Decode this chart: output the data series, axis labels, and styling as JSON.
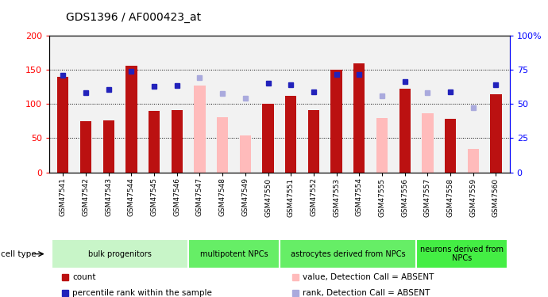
{
  "title": "GDS1396 / AF000423_at",
  "samples": [
    "GSM47541",
    "GSM47542",
    "GSM47543",
    "GSM47544",
    "GSM47545",
    "GSM47546",
    "GSM47547",
    "GSM47548",
    "GSM47549",
    "GSM47550",
    "GSM47551",
    "GSM47552",
    "GSM47553",
    "GSM47554",
    "GSM47555",
    "GSM47556",
    "GSM47557",
    "GSM47558",
    "GSM47559",
    "GSM47560"
  ],
  "count_values": [
    140,
    75,
    76,
    156,
    90,
    91,
    null,
    null,
    null,
    100,
    112,
    91,
    150,
    160,
    null,
    122,
    null,
    78,
    null,
    114
  ],
  "count_absent": [
    null,
    null,
    null,
    null,
    null,
    null,
    127,
    81,
    54,
    null,
    null,
    null,
    null,
    null,
    80,
    null,
    86,
    null,
    34,
    null
  ],
  "rank_values": [
    142,
    117,
    121,
    148,
    126,
    127,
    null,
    null,
    null,
    130,
    128,
    118,
    143,
    143,
    null,
    133,
    null,
    118,
    null,
    128
  ],
  "rank_absent": [
    null,
    null,
    null,
    null,
    null,
    null,
    138,
    115,
    108,
    null,
    null,
    null,
    null,
    null,
    112,
    null,
    116,
    null,
    94,
    null
  ],
  "cell_groups": [
    {
      "label": "bulk progenitors",
      "start": 0,
      "end": 5,
      "color": "#c8f5c8"
    },
    {
      "label": "multipotent NPCs",
      "start": 6,
      "end": 9,
      "color": "#66ee66"
    },
    {
      "label": "astrocytes derived from NPCs",
      "start": 10,
      "end": 15,
      "color": "#66ee66"
    },
    {
      "label": "neurons derived from\nNPCs",
      "start": 16,
      "end": 19,
      "color": "#44ee44"
    }
  ],
  "ylim_left": [
    0,
    200
  ],
  "ylim_right": [
    0,
    100
  ],
  "left_yticks": [
    0,
    50,
    100,
    150,
    200
  ],
  "right_yticks": [
    0,
    25,
    50,
    75,
    100
  ],
  "bar_color_present": "#bb1111",
  "bar_color_absent": "#ffbbbb",
  "rank_color_present": "#2222bb",
  "rank_color_absent": "#aaaadd",
  "bg_color": "#e8e8e8"
}
